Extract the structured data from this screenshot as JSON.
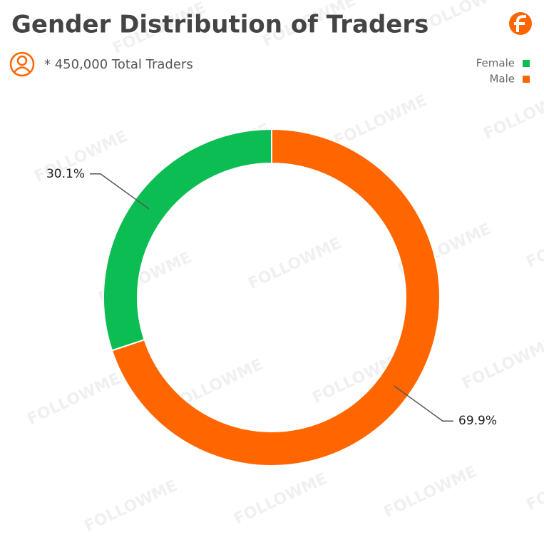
{
  "chart_data": {
    "type": "donut",
    "title": "Gender Distribution of Traders",
    "subtitle": "* 450,000 Total Traders",
    "watermark": "FOLLOWME",
    "series": [
      {
        "name": "Female",
        "color": "#0bbd52",
        "values": [
          30.1
        ],
        "value_labels": [
          "30.1%"
        ]
      },
      {
        "name": "Male",
        "color": "#ff6600",
        "values": [
          69.9
        ],
        "value_labels": [
          "69.9%"
        ]
      }
    ],
    "legend": "top-right"
  }
}
